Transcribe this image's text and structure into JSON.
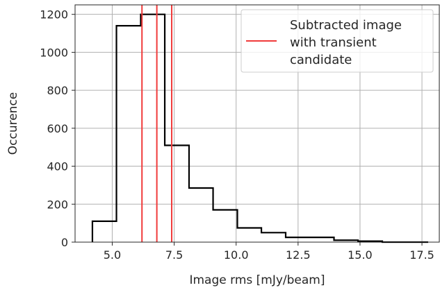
{
  "chart_data": {
    "type": "histogram",
    "title": "",
    "xlabel": "Image rms [mJy/beam]",
    "ylabel": "Occurence",
    "xlim": [
      3.5,
      18.2
    ],
    "ylim": [
      0,
      1250
    ],
    "xticks": [
      5.0,
      7.5,
      10.0,
      12.5,
      15.0,
      17.5
    ],
    "xtick_labels": [
      "5.0",
      "7.5",
      "10.0",
      "12.5",
      "15.0",
      "17.5"
    ],
    "yticks": [
      0,
      200,
      400,
      600,
      800,
      1000,
      1200
    ],
    "ytick_labels": [
      "0",
      "200",
      "400",
      "600",
      "800",
      "1000",
      "1200"
    ],
    "grid": true,
    "histogram": {
      "bin_edges": [
        4.2,
        5.17,
        6.15,
        7.12,
        8.1,
        9.07,
        10.05,
        11.02,
        12.0,
        12.97,
        13.95,
        14.92,
        15.9,
        16.87,
        17.75
      ],
      "counts": [
        110,
        1140,
        1200,
        510,
        285,
        170,
        75,
        50,
        25,
        25,
        10,
        5,
        0,
        0
      ],
      "color": "#000000"
    },
    "vlines": {
      "x": [
        6.2,
        6.8,
        7.4
      ],
      "color": "#f03a3a"
    },
    "legend": {
      "position": "top-right",
      "entries": [
        {
          "label_lines": [
            "Subtracted image",
            "with transient",
            "candidate"
          ],
          "color": "#f03a3a"
        }
      ]
    }
  }
}
